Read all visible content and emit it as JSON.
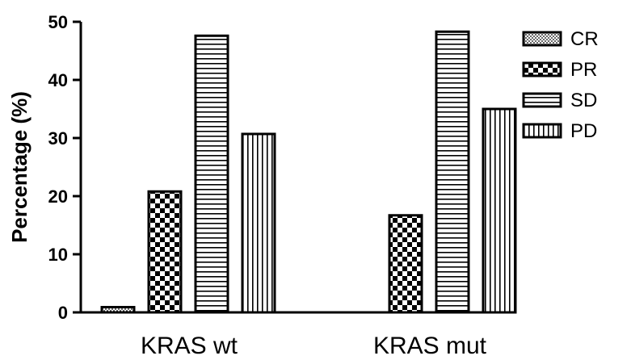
{
  "chart_data": {
    "type": "bar",
    "ylabel": "Percentage (%)",
    "xlabel": "",
    "ylim": [
      0,
      50
    ],
    "yticks": [
      0,
      10,
      20,
      30,
      40,
      50
    ],
    "categories": [
      "KRAS wt",
      "KRAS mut"
    ],
    "series": [
      {
        "name": "CR",
        "values": [
          0.9,
          0
        ],
        "pattern": "dots"
      },
      {
        "name": "PR",
        "values": [
          20.8,
          16.7
        ],
        "pattern": "checker"
      },
      {
        "name": "SD",
        "values": [
          47.6,
          48.3
        ],
        "pattern": "hlines"
      },
      {
        "name": "PD",
        "values": [
          30.7,
          35.0
        ],
        "pattern": "vlines"
      }
    ],
    "legend_position": "right",
    "grid": false
  }
}
